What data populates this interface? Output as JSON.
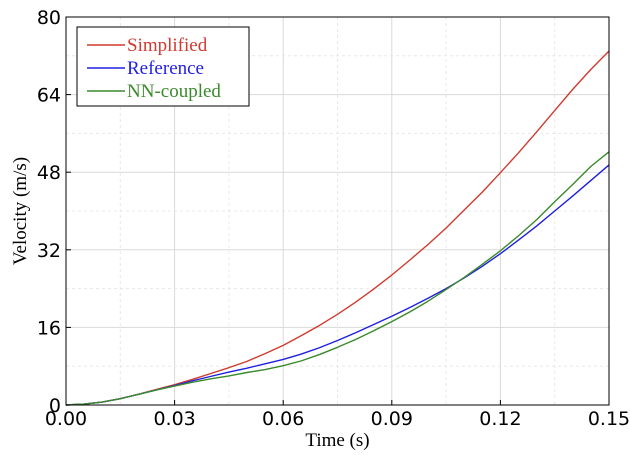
{
  "chart_data": {
    "type": "line",
    "title": "",
    "xlabel": "Time (s)",
    "ylabel": "Velocity (m/s)",
    "xlim": [
      0,
      0.15
    ],
    "ylim": [
      0,
      80
    ],
    "x_ticks": [
      0.0,
      0.03,
      0.06,
      0.09,
      0.12,
      0.15
    ],
    "x_tick_labels": [
      "0.00",
      "0.03",
      "0.06",
      "0.09",
      "0.12",
      "0.15"
    ],
    "y_ticks": [
      0,
      16,
      32,
      48,
      64,
      80
    ],
    "y_tick_labels": [
      "0",
      "16",
      "32",
      "48",
      "64",
      "80"
    ],
    "grid": true,
    "legend_position": "top-left",
    "series": [
      {
        "name": "Simplified",
        "color": "#d03a2f",
        "x": [
          0,
          0.005,
          0.01,
          0.015,
          0.02,
          0.025,
          0.03,
          0.035,
          0.04,
          0.045,
          0.05,
          0.055,
          0.06,
          0.065,
          0.07,
          0.075,
          0.08,
          0.085,
          0.09,
          0.095,
          0.1,
          0.105,
          0.11,
          0.115,
          0.12,
          0.125,
          0.13,
          0.135,
          0.14,
          0.145,
          0.15
        ],
        "y": [
          0,
          0.2,
          0.6,
          1.3,
          2.2,
          3.2,
          4.2,
          5.3,
          6.5,
          7.7,
          9.0,
          10.6,
          12.3,
          14.3,
          16.4,
          18.7,
          21.2,
          23.9,
          26.8,
          29.9,
          33.1,
          36.5,
          40.2,
          43.9,
          47.9,
          52.0,
          56.3,
          60.7,
          65.1,
          69.2,
          73.0
        ]
      },
      {
        "name": "Reference",
        "color": "#1f1fe0",
        "x": [
          0,
          0.005,
          0.01,
          0.015,
          0.02,
          0.025,
          0.03,
          0.035,
          0.04,
          0.045,
          0.05,
          0.055,
          0.06,
          0.065,
          0.07,
          0.075,
          0.08,
          0.085,
          0.09,
          0.095,
          0.1,
          0.105,
          0.11,
          0.115,
          0.12,
          0.125,
          0.13,
          0.135,
          0.14,
          0.145,
          0.15
        ],
        "y": [
          0,
          0.2,
          0.6,
          1.3,
          2.2,
          3.1,
          4.0,
          5.0,
          5.9,
          6.8,
          7.6,
          8.5,
          9.4,
          10.5,
          11.8,
          13.3,
          14.9,
          16.6,
          18.3,
          20.1,
          22.0,
          24.0,
          26.2,
          28.6,
          31.2,
          34.0,
          36.9,
          40.0,
          43.1,
          46.3,
          49.5
        ]
      },
      {
        "name": "NN-coupled",
        "color": "#3a8a2c",
        "x": [
          0,
          0.005,
          0.01,
          0.015,
          0.02,
          0.025,
          0.03,
          0.035,
          0.04,
          0.045,
          0.05,
          0.055,
          0.06,
          0.065,
          0.07,
          0.075,
          0.08,
          0.085,
          0.09,
          0.095,
          0.1,
          0.105,
          0.11,
          0.115,
          0.12,
          0.125,
          0.13,
          0.135,
          0.14,
          0.145,
          0.15
        ],
        "y": [
          0,
          0.2,
          0.6,
          1.3,
          2.2,
          3.1,
          3.9,
          4.7,
          5.4,
          6.0,
          6.7,
          7.3,
          8.1,
          9.1,
          10.4,
          11.9,
          13.5,
          15.3,
          17.2,
          19.2,
          21.4,
          23.8,
          26.3,
          29.0,
          31.8,
          34.9,
          38.2,
          41.9,
          45.5,
          49.2,
          52.2
        ]
      }
    ]
  }
}
